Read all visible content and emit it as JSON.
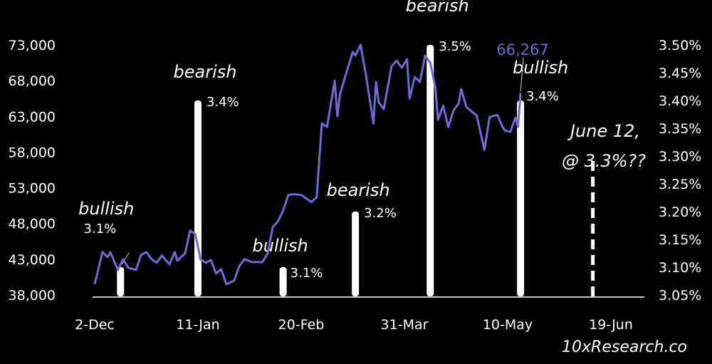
{
  "chart_data": {
    "type": "line+bar",
    "title": "",
    "xlabel": "",
    "ylabel_left": "",
    "ylabel_right": "",
    "left_axis": {
      "range": [
        38000,
        73000
      ],
      "ticks": [
        38000,
        43000,
        48000,
        53000,
        58000,
        63000,
        68000,
        73000
      ],
      "tick_labels": [
        "38,000",
        "43,000",
        "48,000",
        "53,000",
        "58,000",
        "63,000",
        "68,000",
        "73,000"
      ]
    },
    "right_axis": {
      "range": [
        3.05,
        3.5
      ],
      "ticks": [
        3.05,
        3.1,
        3.15,
        3.2,
        3.25,
        3.3,
        3.35,
        3.4,
        3.45,
        3.5
      ],
      "tick_labels": [
        "3.05%",
        "3.10%",
        "3.15%",
        "3.20%",
        "3.25%",
        "3.30%",
        "3.35%",
        "3.40%",
        "3.45%",
        "3.50%"
      ]
    },
    "x_axis": {
      "range": [
        "2023-12-02",
        "2024-06-24"
      ],
      "ticks": [
        "2023-12-02",
        "2024-01-11",
        "2024-02-20",
        "2024-03-31",
        "2024-05-10",
        "2024-06-19"
      ],
      "tick_labels": [
        "2-Dec",
        "11-Jan",
        "20-Feb",
        "31-Mar",
        "10-May",
        "19-Jun"
      ]
    },
    "grid": false,
    "line_series": {
      "color": "#6e6ad6",
      "axis": "left",
      "points": [
        [
          "2023-12-02",
          39500
        ],
        [
          "2023-12-05",
          44000
        ],
        [
          "2023-12-07",
          43300
        ],
        [
          "2023-12-08",
          44000
        ],
        [
          "2023-12-11",
          41500
        ],
        [
          "2023-12-13",
          43000
        ],
        [
          "2023-12-15",
          41800
        ],
        [
          "2023-12-18",
          41500
        ],
        [
          "2023-12-20",
          43600
        ],
        [
          "2023-12-22",
          44000
        ],
        [
          "2023-12-24",
          43000
        ],
        [
          "2023-12-26",
          42500
        ],
        [
          "2023-12-28",
          43500
        ],
        [
          "2023-12-31",
          42300
        ],
        [
          "2024-01-02",
          44000
        ],
        [
          "2024-01-03",
          42800
        ],
        [
          "2024-01-06",
          43800
        ],
        [
          "2024-01-08",
          47000
        ],
        [
          "2024-01-10",
          46500
        ],
        [
          "2024-01-12",
          43000
        ],
        [
          "2024-01-14",
          42500
        ],
        [
          "2024-01-16",
          42900
        ],
        [
          "2024-01-18",
          41000
        ],
        [
          "2024-01-20",
          41600
        ],
        [
          "2024-01-22",
          39500
        ],
        [
          "2024-01-25",
          40000
        ],
        [
          "2024-01-27",
          42000
        ],
        [
          "2024-01-29",
          43000
        ],
        [
          "2024-02-01",
          42600
        ],
        [
          "2024-02-05",
          42600
        ],
        [
          "2024-02-07",
          43800
        ],
        [
          "2024-02-09",
          47500
        ],
        [
          "2024-02-11",
          48300
        ],
        [
          "2024-02-13",
          49800
        ],
        [
          "2024-02-15",
          52000
        ],
        [
          "2024-02-17",
          52100
        ],
        [
          "2024-02-20",
          52000
        ],
        [
          "2024-02-24",
          51000
        ],
        [
          "2024-02-26",
          51700
        ],
        [
          "2024-02-28",
          62000
        ],
        [
          "2024-03-01",
          61500
        ],
        [
          "2024-03-04",
          68000
        ],
        [
          "2024-03-05",
          63000
        ],
        [
          "2024-03-06",
          66000
        ],
        [
          "2024-03-08",
          68500
        ],
        [
          "2024-03-11",
          72000
        ],
        [
          "2024-03-12",
          71500
        ],
        [
          "2024-03-14",
          73000
        ],
        [
          "2024-03-16",
          69000
        ],
        [
          "2024-03-19",
          62000
        ],
        [
          "2024-03-20",
          67800
        ],
        [
          "2024-03-21",
          65000
        ],
        [
          "2024-03-23",
          64000
        ],
        [
          "2024-03-26",
          70000
        ],
        [
          "2024-03-28",
          70800
        ],
        [
          "2024-03-30",
          69800
        ],
        [
          "2024-04-01",
          71000
        ],
        [
          "2024-04-02",
          65500
        ],
        [
          "2024-04-04",
          68500
        ],
        [
          "2024-04-06",
          67800
        ],
        [
          "2024-04-08",
          71500
        ],
        [
          "2024-04-10",
          70500
        ],
        [
          "2024-04-12",
          67000
        ],
        [
          "2024-04-13",
          62500
        ],
        [
          "2024-04-15",
          64500
        ],
        [
          "2024-04-17",
          61500
        ],
        [
          "2024-04-19",
          63800
        ],
        [
          "2024-04-21",
          64800
        ],
        [
          "2024-04-22",
          66800
        ],
        [
          "2024-04-24",
          64300
        ],
        [
          "2024-04-26",
          63700
        ],
        [
          "2024-04-28",
          63100
        ],
        [
          "2024-05-01",
          58300
        ],
        [
          "2024-05-03",
          62900
        ],
        [
          "2024-05-06",
          63200
        ],
        [
          "2024-05-08",
          61500
        ],
        [
          "2024-05-09",
          61000
        ],
        [
          "2024-05-11",
          60800
        ],
        [
          "2024-05-13",
          62800
        ],
        [
          "2024-05-14",
          61500
        ],
        [
          "2024-05-15",
          66267
        ]
      ]
    },
    "bar_series": {
      "color": "#ffffff",
      "axis": "right",
      "bars": [
        {
          "date": "2023-12-12",
          "value": 3.1,
          "label": "3.1%",
          "sentiment": "bullish",
          "dashed": false
        },
        {
          "date": "2024-01-11",
          "value": 3.4,
          "label": "3.4%",
          "sentiment": "bearish",
          "dashed": false
        },
        {
          "date": "2024-02-13",
          "value": 3.1,
          "label": "3.1%",
          "sentiment": "bullish",
          "dashed": false
        },
        {
          "date": "2024-03-12",
          "value": 3.2,
          "label": "3.2%",
          "sentiment": "bearish",
          "dashed": false
        },
        {
          "date": "2024-04-10",
          "value": 3.5,
          "label": "3.5%",
          "sentiment": "bearish",
          "dashed": false
        },
        {
          "date": "2024-05-15",
          "value": 3.4,
          "label": "3.4%",
          "sentiment": "bullish",
          "dashed": false
        },
        {
          "date": "2024-06-12",
          "value": 3.3,
          "label": "",
          "sentiment": "",
          "dashed": true
        }
      ]
    },
    "annotations": {
      "last_price": "66,267",
      "june_line1": "June 12,",
      "june_line2": "@ 3.3%??"
    }
  },
  "watermark": "10xResearch.co"
}
